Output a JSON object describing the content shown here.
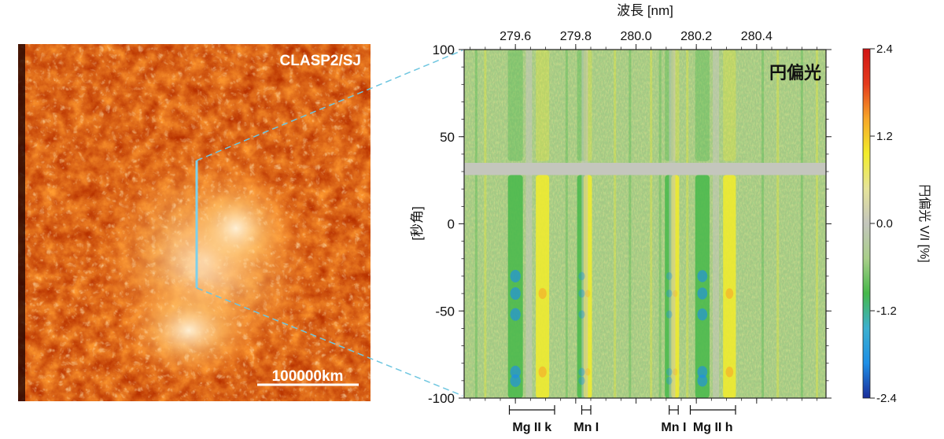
{
  "sj_image": {
    "label": "CLASP2/SJ",
    "scale_bar_label": "100000km",
    "colors": {
      "dark": "#2a0200",
      "mid": "#b83200",
      "bright": "#ff9a30",
      "hot": "#fff4dc"
    }
  },
  "connector_color": "#6ec6e0",
  "slit_color": "#7fd0ea",
  "chart_data": {
    "type": "heatmap",
    "title": "円偏光",
    "xlabel": "波長 [nm]",
    "ylabel": "[秒角]",
    "x_ticks": [
      "279.6",
      "279.8",
      "280.0",
      "280.2",
      "280.4"
    ],
    "x_tick_values": [
      279.6,
      279.8,
      280.0,
      280.2,
      280.4
    ],
    "xlim": [
      279.43,
      280.63
    ],
    "y_ticks": [
      "100",
      "50",
      "0",
      "-50",
      "-100"
    ],
    "y_tick_values": [
      100,
      50,
      0,
      -50,
      -100
    ],
    "ylim": [
      -100,
      100
    ],
    "masked_row_y": 31.5,
    "lines": [
      {
        "name": "Mg II k",
        "bracket": [
          279.58,
          279.73
        ],
        "green_x": 279.6,
        "yellow_x": 279.69,
        "strength": 1.0
      },
      {
        "name": "Mn I",
        "bracket": [
          279.82,
          279.85
        ],
        "green_x": 279.82,
        "yellow_x": 279.84,
        "strength": 0.55
      },
      {
        "name": "Mn I",
        "bracket": [
          280.11,
          280.14
        ],
        "green_x": 280.11,
        "yellow_x": 280.13,
        "strength": 0.5
      },
      {
        "name": "Mg II h",
        "bracket": [
          280.18,
          280.33
        ],
        "green_x": 280.22,
        "yellow_x": 280.31,
        "strength": 0.95
      }
    ],
    "colorbar": {
      "label": "円偏光 V/I [%]",
      "ticks": [
        "2.4",
        "1.2",
        "0.0",
        "-1.2",
        "-2.4"
      ],
      "tick_values": [
        2.4,
        1.2,
        0.0,
        -1.2,
        -2.4
      ],
      "range": [
        -2.4,
        2.4
      ],
      "colors": [
        "#1a2c9a",
        "#1e8fe6",
        "#3cb0cf",
        "#46b84a",
        "#a9cf8a",
        "#c4c6bd",
        "#e6e49a",
        "#f2ec2a",
        "#f7a628",
        "#e43a1c",
        "#d11414"
      ]
    }
  }
}
